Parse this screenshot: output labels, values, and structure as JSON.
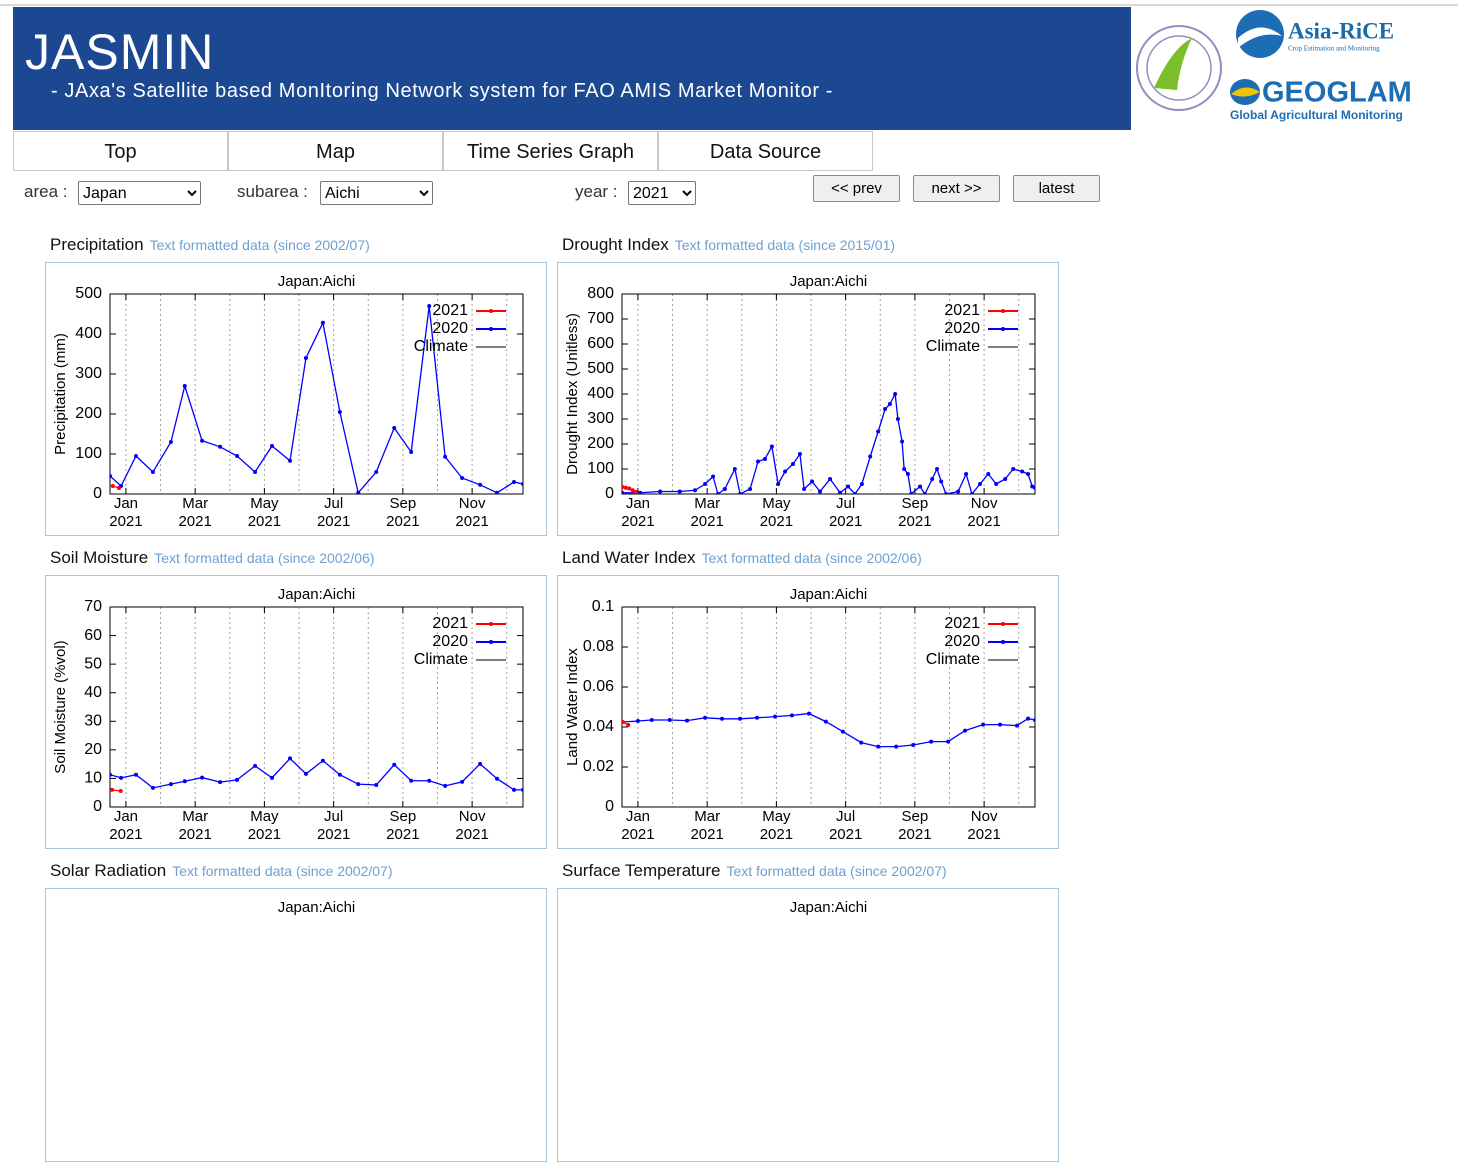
{
  "header": {
    "title": "JASMIN",
    "subtitle": "- JAxa's Satellite based MonItoring Network system for FAO AMIS Market Monitor -"
  },
  "logos": {
    "asia_rice": "Asia-RiCE",
    "asia_rice_sub": "Crop Estimation and Monitoring",
    "geoglam": "GEOGLAM",
    "geoglam_sub": "Global Agricultural Monitoring"
  },
  "nav": [
    "Top",
    "Map",
    "Time Series Graph",
    "Data Source"
  ],
  "controls": {
    "area_label": "area :",
    "area": "Japan",
    "subarea_label": "subarea :",
    "subarea": "Aichi",
    "year_label": "year :",
    "year": "2021",
    "buttons": [
      "<< prev",
      "next >>",
      "latest"
    ]
  },
  "panels": [
    {
      "heading": "Precipitation",
      "link": "Text formatted data (since 2002/07)"
    },
    {
      "heading": "Drought Index",
      "link": "Text formatted data (since 2015/01)"
    },
    {
      "heading": "Soil Moisture",
      "link": "Text formatted data (since 2002/06)"
    },
    {
      "heading": "Land Water Index",
      "link": "Text formatted data (since 2002/06)"
    },
    {
      "heading": "Solar Radiation",
      "link": "Text formatted data (since 2002/07)"
    },
    {
      "heading": "Surface Temperature",
      "link": "Text formatted data (since 2002/07)"
    }
  ],
  "chart_data": [
    {
      "type": "line",
      "title": "Japan:Aichi",
      "ylabel": "Precipitation (mm)",
      "legend": "upper right",
      "xlim": [
        0.54,
        12.47
      ],
      "xgrid": [
        1,
        2,
        3,
        4,
        5,
        6,
        7,
        8,
        9,
        10,
        11,
        12
      ],
      "xticks": [
        {
          "value": 1,
          "label": "Jan 2021"
        },
        {
          "value": 3,
          "label": "Mar 2021"
        },
        {
          "value": 5,
          "label": "May 2021"
        },
        {
          "value": 7,
          "label": "Jul 2021"
        },
        {
          "value": 9,
          "label": "Sep 2021"
        },
        {
          "value": 11,
          "label": "Nov 2021"
        }
      ],
      "ylim": [
        0,
        500
      ],
      "yticks": [
        0,
        100,
        200,
        300,
        400,
        500
      ],
      "series": [
        {
          "name": "2021",
          "color": "#ff0000",
          "x": [
            0.62,
            0.8
          ],
          "values": [
            20,
            15
          ]
        },
        {
          "name": "2020",
          "color": "#0000ff",
          "x": [
            0.54,
            0.86,
            1.29,
            1.78,
            2.3,
            2.7,
            3.2,
            3.72,
            4.21,
            4.73,
            5.22,
            5.74,
            6.2,
            6.69,
            7.18,
            7.71,
            8.23,
            8.75,
            9.24,
            9.76,
            10.22,
            10.71,
            11.23,
            11.72,
            12.21,
            12.47
          ],
          "values": [
            45,
            20,
            95,
            55,
            130,
            270,
            133,
            118,
            95,
            55,
            120,
            83,
            340,
            428,
            205,
            3,
            55,
            165,
            105,
            470,
            93,
            40,
            23,
            3,
            30,
            25
          ]
        },
        {
          "name": "Climate",
          "color": "#808080",
          "x": [],
          "values": []
        }
      ]
    },
    {
      "type": "line",
      "title": "Japan:Aichi",
      "ylabel": "Drought Index (Unitless)",
      "legend": "upper right",
      "xlim": [
        0.54,
        12.47
      ],
      "xgrid": [
        1,
        2,
        3,
        4,
        5,
        6,
        7,
        8,
        9,
        10,
        11,
        12
      ],
      "xticks": [
        {
          "value": 1,
          "label": "Jan 2021"
        },
        {
          "value": 3,
          "label": "Mar 2021"
        },
        {
          "value": 5,
          "label": "May 2021"
        },
        {
          "value": 7,
          "label": "Jul 2021"
        },
        {
          "value": 9,
          "label": "Sep 2021"
        },
        {
          "value": 11,
          "label": "Nov 2021"
        }
      ],
      "ylim": [
        0,
        800
      ],
      "yticks": [
        0,
        100,
        200,
        300,
        400,
        500,
        600,
        700,
        800
      ],
      "series": [
        {
          "name": "2021",
          "color": "#ff0000",
          "x": [
            0.55,
            0.65,
            0.75,
            0.85,
            0.95
          ],
          "values": [
            28,
            25,
            22,
            15,
            8
          ]
        },
        {
          "name": "2020",
          "color": "#0000ff",
          "x": [
            0.54,
            1.06,
            1.64,
            2.21,
            2.65,
            2.94,
            3.17,
            3.31,
            3.51,
            3.8,
            3.95,
            4.24,
            4.47,
            4.67,
            4.87,
            5.05,
            5.25,
            5.48,
            5.68,
            5.8,
            6.03,
            6.26,
            6.55,
            6.84,
            7.07,
            7.27,
            7.47,
            7.71,
            7.94,
            8.14,
            8.28,
            8.43,
            8.51,
            8.63,
            8.69,
            8.8,
            8.89,
            9.15,
            9.29,
            9.5,
            9.64,
            9.76,
            9.9,
            10.25,
            10.48,
            10.65,
            10.88,
            11.12,
            11.35,
            11.61,
            11.84,
            12.1,
            12.27,
            12.39,
            12.47
          ],
          "values": [
            5,
            5,
            10,
            10,
            15,
            40,
            70,
            0,
            20,
            100,
            0,
            20,
            130,
            140,
            190,
            40,
            90,
            120,
            160,
            20,
            50,
            10,
            60,
            5,
            30,
            0,
            40,
            150,
            250,
            340,
            360,
            400,
            300,
            210,
            100,
            80,
            0,
            30,
            0,
            60,
            100,
            50,
            0,
            10,
            80,
            0,
            40,
            80,
            40,
            60,
            100,
            90,
            80,
            30,
            25
          ]
        },
        {
          "name": "Climate",
          "color": "#808080",
          "x": [],
          "values": []
        }
      ]
    },
    {
      "type": "line",
      "title": "Japan:Aichi",
      "ylabel": "Soil Moisture (%vol)",
      "legend": "upper right",
      "xlim": [
        0.54,
        12.47
      ],
      "xgrid": [
        1,
        2,
        3,
        4,
        5,
        6,
        7,
        8,
        9,
        10,
        11,
        12
      ],
      "xticks": [
        {
          "value": 1,
          "label": "Jan 2021"
        },
        {
          "value": 3,
          "label": "Mar 2021"
        },
        {
          "value": 5,
          "label": "May 2021"
        },
        {
          "value": 7,
          "label": "Jul 2021"
        },
        {
          "value": 9,
          "label": "Sep 2021"
        },
        {
          "value": 11,
          "label": "Nov 2021"
        }
      ],
      "ylim": [
        0,
        70
      ],
      "yticks": [
        0,
        10,
        20,
        30,
        40,
        50,
        60,
        70
      ],
      "series": [
        {
          "name": "2021",
          "color": "#ff0000",
          "x": [
            0.6,
            0.85
          ],
          "values": [
            6,
            5.6
          ]
        },
        {
          "name": "2020",
          "color": "#0000ff",
          "x": [
            0.54,
            0.86,
            1.29,
            1.78,
            2.3,
            2.7,
            3.2,
            3.72,
            4.21,
            4.73,
            5.22,
            5.74,
            6.2,
            6.69,
            7.18,
            7.71,
            8.23,
            8.75,
            9.24,
            9.76,
            10.22,
            10.71,
            11.23,
            11.72,
            12.21,
            12.47
          ],
          "values": [
            11.3,
            10.2,
            11.3,
            6.7,
            8,
            9,
            10.3,
            8.7,
            9.5,
            14.4,
            10.2,
            17,
            11.6,
            16.2,
            11.3,
            8,
            7.7,
            14.8,
            9.2,
            9.2,
            7.4,
            8.8,
            15.1,
            9.9,
            6,
            6
          ]
        },
        {
          "name": "Climate",
          "color": "#808080",
          "x": [],
          "values": []
        }
      ]
    },
    {
      "type": "line",
      "title": "Japan:Aichi",
      "ylabel": "Land Water Index",
      "legend": "upper right",
      "xlim": [
        0.54,
        12.47
      ],
      "xgrid": [
        1,
        2,
        3,
        4,
        5,
        6,
        7,
        8,
        9,
        10,
        11,
        12
      ],
      "xticks": [
        {
          "value": 1,
          "label": "Jan 2021"
        },
        {
          "value": 3,
          "label": "Mar 2021"
        },
        {
          "value": 5,
          "label": "May 2021"
        },
        {
          "value": 7,
          "label": "Jul 2021"
        },
        {
          "value": 9,
          "label": "Sep 2021"
        },
        {
          "value": 11,
          "label": "Nov 2021"
        }
      ],
      "ylim": [
        0,
        0.1
      ],
      "yticks": [
        0,
        0.02,
        0.04,
        0.06,
        0.08,
        0.1
      ],
      "series": [
        {
          "name": "2021",
          "color": "#ff0000",
          "x": [
            0.56,
            0.72
          ],
          "values": [
            0.0425,
            0.041
          ]
        },
        {
          "name": "2020",
          "color": "#0000ff",
          "x": [
            0.54,
            1,
            1.4,
            1.92,
            2.42,
            2.94,
            3.43,
            3.95,
            4.44,
            4.96,
            5.45,
            5.94,
            6.43,
            6.92,
            7.45,
            7.94,
            8.46,
            8.95,
            9.47,
            9.96,
            10.45,
            10.97,
            11.46,
            11.95,
            12.27,
            12.47
          ],
          "values": [
            0.0425,
            0.043,
            0.0435,
            0.0435,
            0.0432,
            0.0446,
            0.0441,
            0.0441,
            0.0446,
            0.0452,
            0.0458,
            0.0467,
            0.0427,
            0.0377,
            0.0322,
            0.0302,
            0.0302,
            0.031,
            0.0327,
            0.0327,
            0.0382,
            0.0412,
            0.0412,
            0.0407,
            0.0442,
            0.0435
          ]
        },
        {
          "name": "Climate",
          "color": "#808080",
          "x": [],
          "values": []
        }
      ]
    },
    {
      "type": "line",
      "title": "Japan:Aichi"
    },
    {
      "type": "line",
      "title": "Japan:Aichi"
    }
  ]
}
